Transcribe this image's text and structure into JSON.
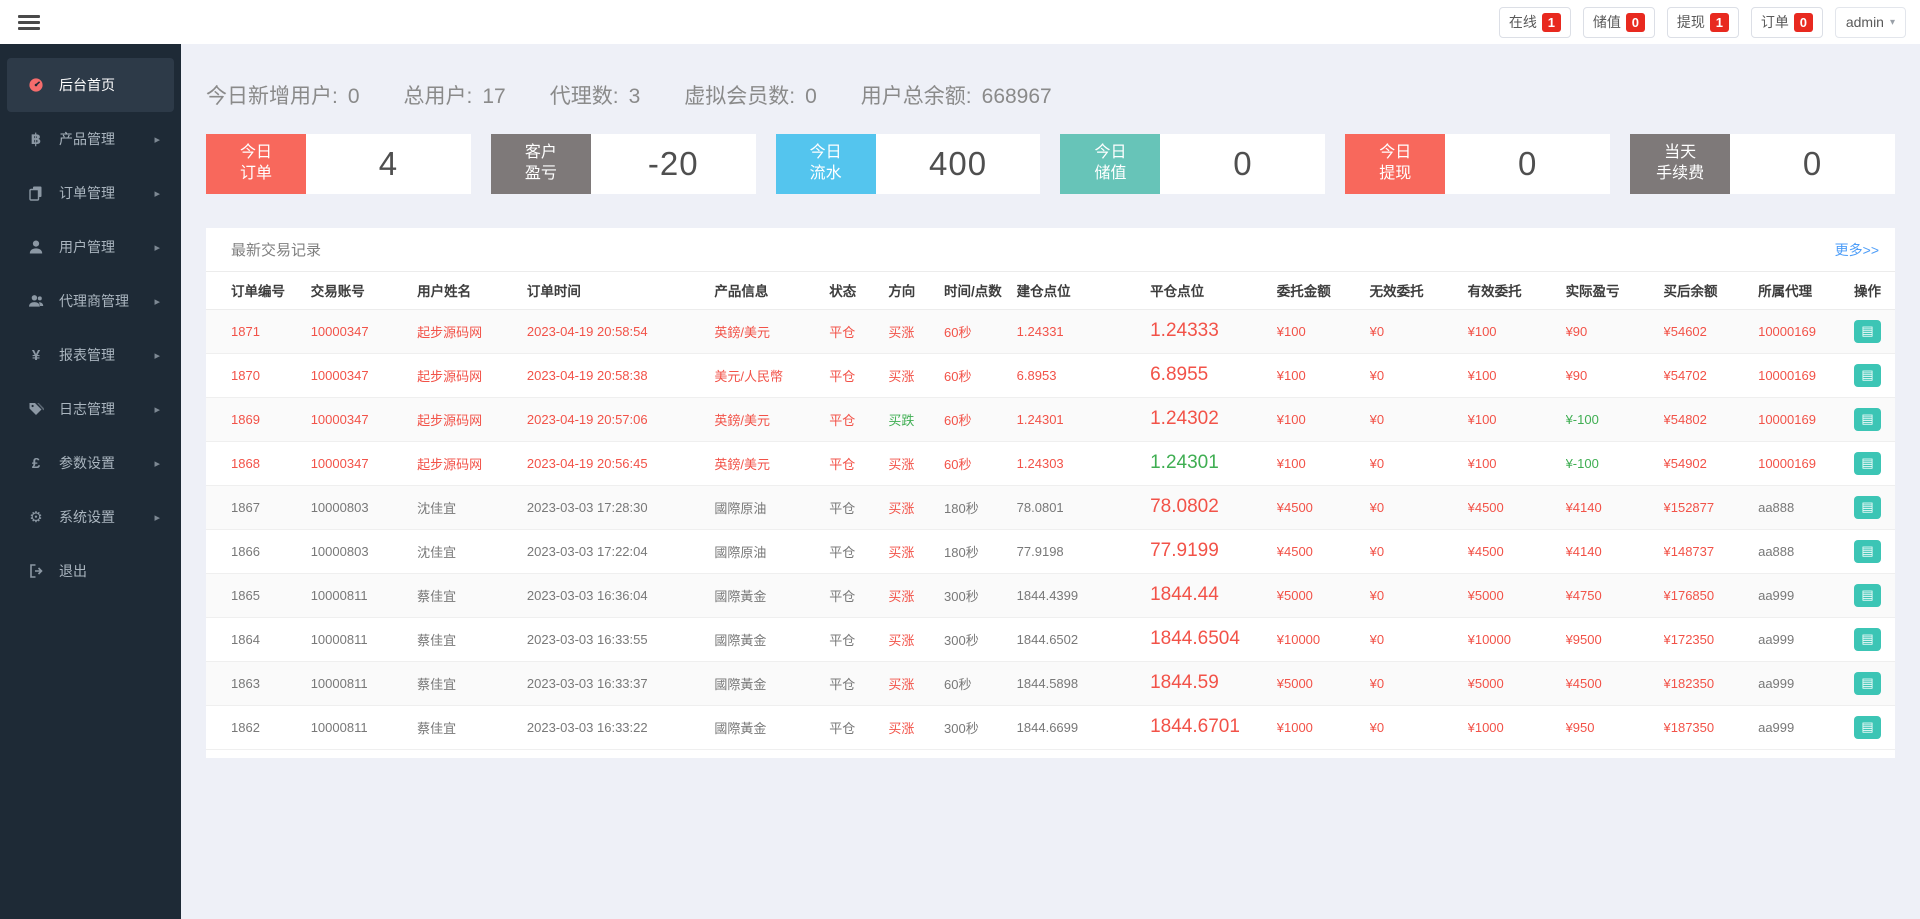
{
  "colors": {
    "badge_red": "#e8291f",
    "card_red": "#f8685c",
    "card_gray": "#7e7979",
    "card_blue": "#54c5ee",
    "card_teal": "#67c4b8",
    "text_red": "#f25248",
    "text_green": "#3fae52",
    "link_blue": "#4d9df8"
  },
  "topbar": {
    "badges": [
      {
        "label": "在线",
        "count": "1"
      },
      {
        "label": "储值",
        "count": "0"
      },
      {
        "label": "提现",
        "count": "1"
      },
      {
        "label": "订单",
        "count": "0"
      }
    ],
    "user": {
      "name": "admin",
      "caret": "▾"
    }
  },
  "sidebar": {
    "items": [
      {
        "label": "后台首页",
        "icon": "dashboard-icon",
        "active": true,
        "has_arrow": false
      },
      {
        "label": "产品管理",
        "icon": "bitcoin-icon",
        "active": false,
        "has_arrow": true
      },
      {
        "label": "订单管理",
        "icon": "orders-icon",
        "active": false,
        "has_arrow": true
      },
      {
        "label": "用户管理",
        "icon": "user-icon",
        "active": false,
        "has_arrow": true
      },
      {
        "label": "代理商管理",
        "icon": "agents-icon",
        "active": false,
        "has_arrow": true
      },
      {
        "label": "报表管理",
        "icon": "yen-icon",
        "active": false,
        "has_arrow": true
      },
      {
        "label": "日志管理",
        "icon": "tags-icon",
        "active": false,
        "has_arrow": true
      },
      {
        "label": "参数设置",
        "icon": "pound-icon",
        "active": false,
        "has_arrow": true
      },
      {
        "label": "系统设置",
        "icon": "gears-icon",
        "active": false,
        "has_arrow": true
      },
      {
        "label": "退出",
        "icon": "logout-icon",
        "active": false,
        "has_arrow": false
      }
    ]
  },
  "stats": [
    {
      "label": "今日新增用户:",
      "value": "0"
    },
    {
      "label": "总用户:",
      "value": "17"
    },
    {
      "label": "代理数:",
      "value": "3"
    },
    {
      "label": "虚拟会员数:",
      "value": "0"
    },
    {
      "label": "用户总余额:",
      "value": "668967"
    }
  ],
  "cards": [
    {
      "lines": [
        "今日",
        "订单"
      ],
      "value": "4",
      "color": "#f8685c"
    },
    {
      "lines": [
        "客户",
        "盈亏"
      ],
      "value": "-20",
      "color": "#7e7979"
    },
    {
      "lines": [
        "今日",
        "流水"
      ],
      "value": "400",
      "color": "#54c5ee"
    },
    {
      "lines": [
        "今日",
        "储值"
      ],
      "value": "0",
      "color": "#67c4b8"
    },
    {
      "lines": [
        "今日",
        "提现"
      ],
      "value": "0",
      "color": "#f8685c"
    },
    {
      "lines": [
        "当天",
        "手续费"
      ],
      "value": "0",
      "color": "#7e7979"
    }
  ],
  "table": {
    "title": "最新交易记录",
    "more_label": "更多>>",
    "action_icon": "▤",
    "columns": [
      {
        "key": "id",
        "label": "订单编号",
        "width": "6.2%"
      },
      {
        "key": "account",
        "label": "交易账号",
        "width": "6.3%"
      },
      {
        "key": "name",
        "label": "用户姓名",
        "width": "6.5%"
      },
      {
        "key": "time",
        "label": "订单时间",
        "width": "11.1%"
      },
      {
        "key": "product",
        "label": "产品信息",
        "width": "6.8%"
      },
      {
        "key": "status",
        "label": "状态",
        "width": "3.5%"
      },
      {
        "key": "direction",
        "label": "方向",
        "width": "3.3%"
      },
      {
        "key": "duration",
        "label": "时间/点数",
        "width": "4.3%"
      },
      {
        "key": "open",
        "label": "建仓点位",
        "width": "7.9%"
      },
      {
        "key": "close",
        "label": "平仓点位",
        "width": "7.5%"
      },
      {
        "key": "amount",
        "label": "委托金额",
        "width": "5.5%"
      },
      {
        "key": "invalid",
        "label": "无效委托",
        "width": "5.8%"
      },
      {
        "key": "valid",
        "label": "有效委托",
        "width": "5.8%"
      },
      {
        "key": "profit",
        "label": "实际盈亏",
        "width": "5.8%"
      },
      {
        "key": "balance",
        "label": "买后余额",
        "width": "5.6%"
      },
      {
        "key": "agent",
        "label": "所属代理",
        "width": "5.3%"
      },
      {
        "key": "action",
        "label": "操作",
        "width": "2.8%"
      }
    ],
    "red_columns_normal_theme": [
      "direction",
      "close",
      "amount",
      "invalid",
      "valid",
      "profit",
      "balance"
    ],
    "rows": [
      {
        "theme": "red",
        "overrides": {},
        "cells": {
          "id": "1871",
          "account": "10000347",
          "name": "起步源码网",
          "time": "2023-04-19 20:58:54",
          "product": "英鎊/美元",
          "status": "平仓",
          "direction": "买涨",
          "duration": "60秒",
          "open": "1.24331",
          "close": "1.24333",
          "amount": "¥100",
          "invalid": "¥0",
          "valid": "¥100",
          "profit": "¥90",
          "balance": "¥54602",
          "agent": "10000169"
        }
      },
      {
        "theme": "red",
        "overrides": {},
        "cells": {
          "id": "1870",
          "account": "10000347",
          "name": "起步源码网",
          "time": "2023-04-19 20:58:38",
          "product": "美元/人民幣",
          "status": "平仓",
          "direction": "买涨",
          "duration": "60秒",
          "open": "6.8953",
          "close": "6.8955",
          "amount": "¥100",
          "invalid": "¥0",
          "valid": "¥100",
          "profit": "¥90",
          "balance": "¥54702",
          "agent": "10000169"
        }
      },
      {
        "theme": "red",
        "overrides": {
          "direction": "green",
          "profit": "green"
        },
        "cells": {
          "id": "1869",
          "account": "10000347",
          "name": "起步源码网",
          "time": "2023-04-19 20:57:06",
          "product": "英鎊/美元",
          "status": "平仓",
          "direction": "买跌",
          "duration": "60秒",
          "open": "1.24301",
          "close": "1.24302",
          "amount": "¥100",
          "invalid": "¥0",
          "valid": "¥100",
          "profit": "¥-100",
          "balance": "¥54802",
          "agent": "10000169"
        }
      },
      {
        "theme": "red",
        "overrides": {
          "close": "green",
          "profit": "green"
        },
        "cells": {
          "id": "1868",
          "account": "10000347",
          "name": "起步源码网",
          "time": "2023-04-19 20:56:45",
          "product": "英鎊/美元",
          "status": "平仓",
          "direction": "买涨",
          "duration": "60秒",
          "open": "1.24303",
          "close": "1.24301",
          "amount": "¥100",
          "invalid": "¥0",
          "valid": "¥100",
          "profit": "¥-100",
          "balance": "¥54902",
          "agent": "10000169"
        }
      },
      {
        "theme": "normal",
        "overrides": {},
        "cells": {
          "id": "1867",
          "account": "10000803",
          "name": "沈佳宜",
          "time": "2023-03-03 17:28:30",
          "product": "國際原油",
          "status": "平仓",
          "direction": "买涨",
          "duration": "180秒",
          "open": "78.0801",
          "close": "78.0802",
          "amount": "¥4500",
          "invalid": "¥0",
          "valid": "¥4500",
          "profit": "¥4140",
          "balance": "¥152877",
          "agent": "aa888"
        }
      },
      {
        "theme": "normal",
        "overrides": {},
        "cells": {
          "id": "1866",
          "account": "10000803",
          "name": "沈佳宜",
          "time": "2023-03-03 17:22:04",
          "product": "國際原油",
          "status": "平仓",
          "direction": "买涨",
          "duration": "180秒",
          "open": "77.9198",
          "close": "77.9199",
          "amount": "¥4500",
          "invalid": "¥0",
          "valid": "¥4500",
          "profit": "¥4140",
          "balance": "¥148737",
          "agent": "aa888"
        }
      },
      {
        "theme": "normal",
        "overrides": {},
        "cells": {
          "id": "1865",
          "account": "10000811",
          "name": "蔡佳宜",
          "time": "2023-03-03 16:36:04",
          "product": "國際黃金",
          "status": "平仓",
          "direction": "买涨",
          "duration": "300秒",
          "open": "1844.4399",
          "close": "1844.44",
          "amount": "¥5000",
          "invalid": "¥0",
          "valid": "¥5000",
          "profit": "¥4750",
          "balance": "¥176850",
          "agent": "aa999"
        }
      },
      {
        "theme": "normal",
        "overrides": {},
        "cells": {
          "id": "1864",
          "account": "10000811",
          "name": "蔡佳宜",
          "time": "2023-03-03 16:33:55",
          "product": "國際黃金",
          "status": "平仓",
          "direction": "买涨",
          "duration": "300秒",
          "open": "1844.6502",
          "close": "1844.6504",
          "amount": "¥10000",
          "invalid": "¥0",
          "valid": "¥10000",
          "profit": "¥9500",
          "balance": "¥172350",
          "agent": "aa999"
        }
      },
      {
        "theme": "normal",
        "overrides": {},
        "cells": {
          "id": "1863",
          "account": "10000811",
          "name": "蔡佳宜",
          "time": "2023-03-03 16:33:37",
          "product": "國際黃金",
          "status": "平仓",
          "direction": "买涨",
          "duration": "60秒",
          "open": "1844.5898",
          "close": "1844.59",
          "amount": "¥5000",
          "invalid": "¥0",
          "valid": "¥5000",
          "profit": "¥4500",
          "balance": "¥182350",
          "agent": "aa999"
        }
      },
      {
        "theme": "normal",
        "overrides": {},
        "cells": {
          "id": "1862",
          "account": "10000811",
          "name": "蔡佳宜",
          "time": "2023-03-03 16:33:22",
          "product": "國際黃金",
          "status": "平仓",
          "direction": "买涨",
          "duration": "300秒",
          "open": "1844.6699",
          "close": "1844.6701",
          "amount": "¥1000",
          "invalid": "¥0",
          "valid": "¥1000",
          "profit": "¥950",
          "balance": "¥187350",
          "agent": "aa999"
        }
      }
    ]
  }
}
